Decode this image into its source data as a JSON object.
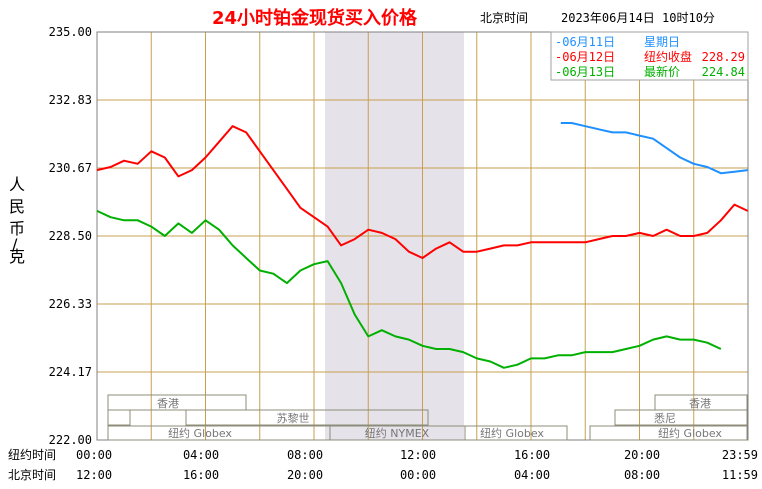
{
  "header": {
    "title": "24小时铂金现货买入价格",
    "tz_label": "北京时间",
    "datetime": "2023年06月14日 10时10分"
  },
  "legend": [
    {
      "label": "-06月11日",
      "note": "星期日",
      "value": "",
      "color": "#1e90ff"
    },
    {
      "label": "-06月12日",
      "note": "纽约收盘",
      "value": "228.29",
      "color": "#ff0000"
    },
    {
      "label": "-06月13日",
      "note": "最新价",
      "value": "224.84",
      "color": "#00b000"
    }
  ],
  "y_axis": {
    "label": "人民币/克",
    "ticks": [
      "235.00",
      "232.83",
      "230.67",
      "228.50",
      "226.33",
      "224.17",
      "222.00"
    ]
  },
  "x_axis": {
    "ny_label": "纽约时间",
    "bj_label": "北京时间",
    "ny_ticks": [
      "00:00",
      "04:00",
      "08:00",
      "12:00",
      "16:00",
      "20:00",
      "23:59"
    ],
    "bj_ticks": [
      "12:00",
      "16:00",
      "20:00",
      "00:00",
      "04:00",
      "08:00",
      "11:59"
    ]
  },
  "markets": [
    {
      "label": "香港"
    },
    {
      "label": "苏黎世"
    },
    {
      "label": "纽约 Globex"
    },
    {
      "label": "纽约 NYMEX"
    },
    {
      "label": "纽约 Globex"
    },
    {
      "label": "香港"
    },
    {
      "label": "悉尼"
    },
    {
      "label": "纽约 Globex"
    }
  ],
  "colors": {
    "grid": "#c8a050",
    "shade": "#e6e2ea",
    "border": "#808080"
  },
  "chart_data": {
    "type": "line",
    "x_unit": "纽约时间 hours (0-24)",
    "ylim": [
      222.0,
      235.0
    ],
    "series": [
      {
        "name": "06月11日",
        "color": "#1e90ff",
        "x": [
          17.1,
          17.5,
          18.0,
          18.5,
          19.0,
          19.5,
          20.0,
          20.5,
          21.0,
          21.5,
          22.0,
          22.5,
          23.0,
          23.5,
          23.99
        ],
        "y": [
          232.1,
          232.1,
          232.0,
          231.9,
          231.8,
          231.8,
          231.7,
          231.6,
          231.3,
          231.0,
          230.8,
          230.7,
          230.5,
          230.55,
          230.6
        ]
      },
      {
        "name": "06月12日",
        "color": "#ff0000",
        "x": [
          0.0,
          0.5,
          1.0,
          1.5,
          2.0,
          2.5,
          3.0,
          3.5,
          4.0,
          4.5,
          5.0,
          5.5,
          6.0,
          6.5,
          7.0,
          7.5,
          8.0,
          8.5,
          9.0,
          9.5,
          10.0,
          10.5,
          11.0,
          11.5,
          12.0,
          12.5,
          13.0,
          13.5,
          14.0,
          14.5,
          15.0,
          15.5,
          16.0,
          16.5,
          17.0,
          17.5,
          18.0,
          18.5,
          19.0,
          19.5,
          20.0,
          20.5,
          21.0,
          21.5,
          22.0,
          22.5,
          23.0,
          23.5,
          23.99
        ],
        "y": [
          230.6,
          230.7,
          230.9,
          230.8,
          231.2,
          231.0,
          230.4,
          230.6,
          231.0,
          231.5,
          232.0,
          231.8,
          231.2,
          230.6,
          230.0,
          229.4,
          229.1,
          228.8,
          228.2,
          228.4,
          228.7,
          228.6,
          228.4,
          228.0,
          227.8,
          228.1,
          228.3,
          228.0,
          228.0,
          228.1,
          228.2,
          228.2,
          228.3,
          228.3,
          228.3,
          228.3,
          228.3,
          228.4,
          228.5,
          228.5,
          228.6,
          228.5,
          228.7,
          228.5,
          228.5,
          228.6,
          229.0,
          229.5,
          229.3
        ]
      },
      {
        "name": "06月13日",
        "color": "#00b000",
        "x": [
          0.0,
          0.5,
          1.0,
          1.5,
          2.0,
          2.5,
          3.0,
          3.5,
          4.0,
          4.5,
          5.0,
          5.5,
          6.0,
          6.5,
          7.0,
          7.5,
          8.0,
          8.5,
          9.0,
          9.5,
          10.0,
          10.5,
          11.0,
          11.5,
          12.0,
          12.5,
          13.0,
          13.5,
          14.0,
          14.5,
          15.0,
          15.5,
          16.0,
          16.5,
          17.0,
          17.5,
          18.0,
          18.5,
          19.0,
          19.5,
          20.0,
          20.5,
          21.0,
          21.5,
          22.0,
          22.5,
          23.0
        ],
        "y": [
          229.3,
          229.1,
          229.0,
          229.0,
          228.8,
          228.5,
          228.9,
          228.6,
          229.0,
          228.7,
          228.2,
          227.8,
          227.4,
          227.3,
          227.0,
          227.4,
          227.6,
          227.7,
          227.0,
          226.0,
          225.3,
          225.5,
          225.3,
          225.2,
          225.0,
          224.9,
          224.9,
          224.8,
          224.6,
          224.5,
          224.3,
          224.4,
          224.6,
          224.6,
          224.7,
          224.7,
          224.8,
          224.8,
          224.8,
          224.9,
          225.0,
          225.2,
          225.3,
          225.2,
          225.2,
          225.1,
          224.9
        ]
      }
    ]
  }
}
